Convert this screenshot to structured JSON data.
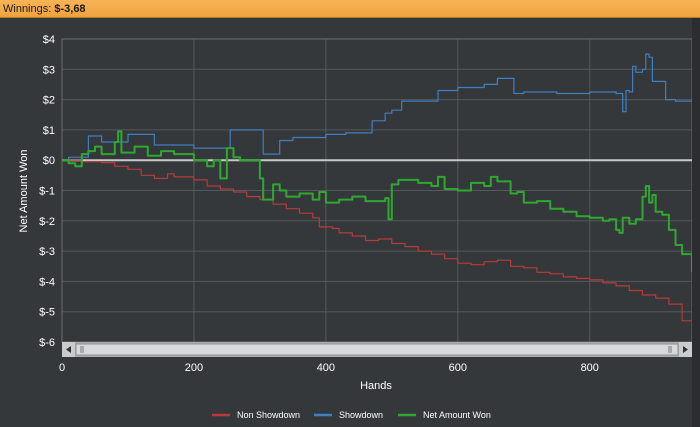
{
  "header": {
    "winnings_label": "Winnings:",
    "winnings_value": "$-3,68",
    "bar_color": "#f2a640"
  },
  "scrollbar": {
    "left_arrow_icon": "arrow-left-icon",
    "right_arrow_icon": "arrow-right-icon",
    "grip_icon": "scroll-grip-icon"
  },
  "chart_data": {
    "type": "line",
    "xlabel": "Hands",
    "ylabel": "Net Amount Won",
    "xlim": [
      0,
      955
    ],
    "ylim": [
      -6,
      4
    ],
    "x_ticks": [
      0,
      200,
      400,
      600,
      800
    ],
    "x_tick_labels": [
      "0",
      "200",
      "400",
      "600",
      "800"
    ],
    "y_ticks": [
      4,
      3,
      2,
      1,
      0,
      -1,
      -2,
      -3,
      -4,
      -5,
      -6
    ],
    "y_tick_labels": [
      "$4",
      "$3",
      "$2",
      "$1",
      "$0",
      "$-1",
      "$-2",
      "$-3",
      "$-4",
      "$-5",
      "$-6"
    ],
    "grid": true,
    "legend_position": "bottom",
    "series": [
      {
        "name": "Non Showdown",
        "color": "#b83a3a",
        "points": [
          [
            0,
            0
          ],
          [
            30,
            -0.05
          ],
          [
            60,
            -0.08
          ],
          [
            80,
            -0.2
          ],
          [
            100,
            -0.3
          ],
          [
            120,
            -0.5
          ],
          [
            140,
            -0.6
          ],
          [
            160,
            -0.45
          ],
          [
            170,
            -0.55
          ],
          [
            200,
            -0.65
          ],
          [
            220,
            -0.85
          ],
          [
            240,
            -0.95
          ],
          [
            260,
            -1.05
          ],
          [
            280,
            -1.2
          ],
          [
            300,
            -1.3
          ],
          [
            320,
            -1.45
          ],
          [
            340,
            -1.6
          ],
          [
            360,
            -1.75
          ],
          [
            380,
            -1.9
          ],
          [
            390,
            -2.2
          ],
          [
            410,
            -2.25
          ],
          [
            420,
            -2.4
          ],
          [
            440,
            -2.5
          ],
          [
            460,
            -2.65
          ],
          [
            480,
            -2.6
          ],
          [
            500,
            -2.75
          ],
          [
            520,
            -2.85
          ],
          [
            540,
            -3.0
          ],
          [
            560,
            -3.1
          ],
          [
            580,
            -3.25
          ],
          [
            600,
            -3.4
          ],
          [
            620,
            -3.45
          ],
          [
            640,
            -3.35
          ],
          [
            660,
            -3.3
          ],
          [
            680,
            -3.5
          ],
          [
            700,
            -3.55
          ],
          [
            720,
            -3.7
          ],
          [
            740,
            -3.75
          ],
          [
            760,
            -3.85
          ],
          [
            780,
            -3.9
          ],
          [
            800,
            -3.95
          ],
          [
            820,
            -4.05
          ],
          [
            840,
            -4.15
          ],
          [
            860,
            -4.3
          ],
          [
            880,
            -4.45
          ],
          [
            900,
            -4.55
          ],
          [
            920,
            -4.75
          ],
          [
            940,
            -5.3
          ],
          [
            955,
            -5.6
          ]
        ]
      },
      {
        "name": "Showdown",
        "color": "#3e7fbf",
        "points": [
          [
            0,
            0
          ],
          [
            10,
            0.1
          ],
          [
            40,
            0.8
          ],
          [
            60,
            0.6
          ],
          [
            100,
            0.85
          ],
          [
            120,
            0.85
          ],
          [
            140,
            0.5
          ],
          [
            180,
            0.5
          ],
          [
            200,
            0.4
          ],
          [
            250,
            0.4
          ],
          [
            255,
            1.0
          ],
          [
            300,
            1.0
          ],
          [
            305,
            0.2
          ],
          [
            330,
            0.65
          ],
          [
            350,
            0.75
          ],
          [
            390,
            0.75
          ],
          [
            400,
            0.85
          ],
          [
            430,
            0.9
          ],
          [
            460,
            0.9
          ],
          [
            470,
            1.3
          ],
          [
            480,
            1.3
          ],
          [
            490,
            1.55
          ],
          [
            500,
            1.65
          ],
          [
            515,
            1.95
          ],
          [
            560,
            1.95
          ],
          [
            570,
            2.3
          ],
          [
            600,
            2.4
          ],
          [
            640,
            2.5
          ],
          [
            660,
            2.7
          ],
          [
            680,
            2.7
          ],
          [
            685,
            2.2
          ],
          [
            700,
            2.25
          ],
          [
            750,
            2.2
          ],
          [
            800,
            2.25
          ],
          [
            840,
            2.2
          ],
          [
            850,
            1.6
          ],
          [
            855,
            2.3
          ],
          [
            860,
            2.25
          ],
          [
            865,
            3.1
          ],
          [
            870,
            2.9
          ],
          [
            880,
            3.0
          ],
          [
            885,
            3.5
          ],
          [
            890,
            3.4
          ],
          [
            895,
            2.6
          ],
          [
            910,
            2.6
          ],
          [
            915,
            2.0
          ],
          [
            930,
            1.95
          ],
          [
            955,
            1.95
          ]
        ]
      },
      {
        "name": "Net Amount Won",
        "color": "#2ea82e",
        "points": [
          [
            0,
            0
          ],
          [
            10,
            -0.1
          ],
          [
            20,
            -0.2
          ],
          [
            30,
            0.2
          ],
          [
            40,
            0.3
          ],
          [
            50,
            0.45
          ],
          [
            60,
            0.2
          ],
          [
            80,
            0.6
          ],
          [
            85,
            0.95
          ],
          [
            90,
            0.25
          ],
          [
            110,
            0.45
          ],
          [
            130,
            0.15
          ],
          [
            150,
            0.3
          ],
          [
            170,
            0.2
          ],
          [
            200,
            0.0
          ],
          [
            220,
            -0.2
          ],
          [
            230,
            0.0
          ],
          [
            240,
            -0.6
          ],
          [
            250,
            0.4
          ],
          [
            260,
            0.1
          ],
          [
            270,
            0.0
          ],
          [
            280,
            0.0
          ],
          [
            300,
            -0.6
          ],
          [
            305,
            -1.3
          ],
          [
            320,
            -0.8
          ],
          [
            330,
            -1.0
          ],
          [
            340,
            -1.2
          ],
          [
            360,
            -1.1
          ],
          [
            380,
            -1.3
          ],
          [
            390,
            -1.05
          ],
          [
            400,
            -1.4
          ],
          [
            420,
            -1.3
          ],
          [
            440,
            -1.2
          ],
          [
            460,
            -1.35
          ],
          [
            470,
            -1.35
          ],
          [
            490,
            -1.25
          ],
          [
            495,
            -1.95
          ],
          [
            500,
            -0.8
          ],
          [
            510,
            -0.65
          ],
          [
            540,
            -0.75
          ],
          [
            560,
            -0.85
          ],
          [
            570,
            -0.55
          ],
          [
            580,
            -0.95
          ],
          [
            600,
            -1.0
          ],
          [
            620,
            -0.75
          ],
          [
            640,
            -0.85
          ],
          [
            650,
            -0.55
          ],
          [
            660,
            -0.7
          ],
          [
            680,
            -1.1
          ],
          [
            690,
            -1.05
          ],
          [
            700,
            -1.4
          ],
          [
            720,
            -1.35
          ],
          [
            740,
            -1.6
          ],
          [
            760,
            -1.7
          ],
          [
            780,
            -1.85
          ],
          [
            800,
            -1.9
          ],
          [
            820,
            -2.0
          ],
          [
            830,
            -1.95
          ],
          [
            840,
            -2.3
          ],
          [
            845,
            -2.4
          ],
          [
            850,
            -1.9
          ],
          [
            860,
            -2.1
          ],
          [
            870,
            -1.95
          ],
          [
            880,
            -1.2
          ],
          [
            885,
            -0.85
          ],
          [
            890,
            -1.4
          ],
          [
            895,
            -1.15
          ],
          [
            900,
            -1.7
          ],
          [
            910,
            -1.8
          ],
          [
            920,
            -2.3
          ],
          [
            930,
            -2.8
          ],
          [
            940,
            -3.1
          ],
          [
            955,
            -3.7
          ]
        ]
      }
    ]
  }
}
